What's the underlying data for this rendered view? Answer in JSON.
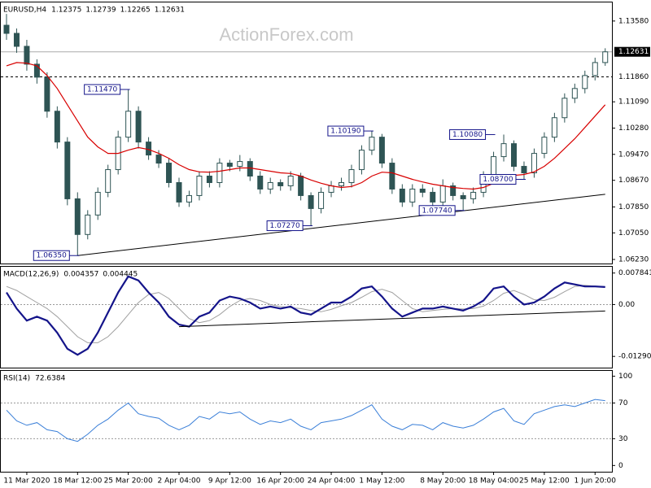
{
  "chart_data": [
    {
      "type": "candlestick",
      "header": {
        "symbol": "EURUSD,H4",
        "values": [
          1.12375,
          1.12739,
          1.12265,
          1.12631
        ]
      },
      "watermark": "ActionForex.com",
      "color": "#2e5454",
      "categories": [
        null,
        null,
        "11 Mar 2020",
        null,
        null,
        null,
        null,
        "18 Mar 12:00",
        null,
        null,
        null,
        null,
        "25 Mar 20:00",
        null,
        null,
        null,
        null,
        "2 Apr 04:00",
        null,
        null,
        null,
        null,
        "9 Apr 12:00",
        null,
        null,
        null,
        null,
        "16 Apr 20:00",
        null,
        null,
        null,
        null,
        "24 Apr 04:00",
        null,
        null,
        null,
        null,
        "1 May 12:00",
        null,
        null,
        null,
        null,
        null,
        "8 May 20:00",
        null,
        null,
        null,
        null,
        "18 May 04:00",
        null,
        null,
        null,
        null,
        "25 May 12:00",
        null,
        null,
        null,
        null,
        "1 Jun 20:00",
        null
      ],
      "open": [
        1.1345,
        1.132,
        1.128,
        1.1225,
        1.1185,
        1.108,
        1.0985,
        1.081,
        1.07,
        1.076,
        1.083,
        1.09,
        1.1,
        1.108,
        1.0985,
        1.0945,
        1.092,
        1.086,
        1.08,
        1.082,
        1.088,
        1.086,
        1.092,
        1.091,
        1.0925,
        1.088,
        1.084,
        1.086,
        1.085,
        1.088,
        1.082,
        1.078,
        1.083,
        1.085,
        1.086,
        1.09,
        1.096,
        1.1,
        1.092,
        1.084,
        1.08,
        1.084,
        1.083,
        1.08,
        1.085,
        1.082,
        1.081,
        1.083,
        1.088,
        1.094,
        1.098,
        1.091,
        1.089,
        1.095,
        1.1,
        1.106,
        1.112,
        1.115,
        1.119,
        1.123
      ],
      "high": [
        1.138,
        1.1335,
        1.13,
        1.124,
        1.12,
        1.1095,
        1.1,
        1.083,
        1.0775,
        1.0845,
        1.0915,
        1.102,
        1.1147,
        1.1095,
        1.1,
        1.096,
        1.0935,
        1.0875,
        1.0835,
        1.0895,
        1.0895,
        1.0935,
        1.093,
        1.0945,
        1.0935,
        1.0895,
        1.0875,
        1.087,
        1.0895,
        1.089,
        1.083,
        1.0845,
        1.0865,
        1.0875,
        1.0915,
        1.0975,
        1.1019,
        1.101,
        1.0935,
        1.0855,
        1.0855,
        1.0855,
        1.0845,
        1.087,
        1.086,
        1.083,
        1.0845,
        1.0895,
        1.0955,
        1.1008,
        1.099,
        1.0925,
        1.0965,
        1.1015,
        1.1075,
        1.1135,
        1.1165,
        1.1205,
        1.1245,
        1.1274
      ],
      "low": [
        1.13,
        1.126,
        1.1205,
        1.1165,
        1.106,
        1.0965,
        1.079,
        1.0635,
        1.0685,
        1.0745,
        1.0815,
        1.0885,
        1.0985,
        1.0965,
        1.093,
        1.0905,
        1.0845,
        1.0785,
        1.0785,
        1.0805,
        1.0845,
        1.0845,
        1.0895,
        1.0895,
        1.0865,
        1.0825,
        1.0825,
        1.0835,
        1.0835,
        1.0805,
        1.0727,
        1.0765,
        1.0815,
        1.0835,
        1.0845,
        1.0885,
        1.0945,
        1.0905,
        1.0825,
        1.0785,
        1.0785,
        1.0815,
        1.0785,
        1.0785,
        1.0805,
        1.0774,
        1.0795,
        1.0815,
        1.0865,
        1.0925,
        1.0895,
        1.087,
        1.0875,
        1.0935,
        1.0985,
        1.1045,
        1.1105,
        1.1135,
        1.1175,
        1.122
      ],
      "close": [
        1.132,
        1.128,
        1.1225,
        1.1185,
        1.108,
        1.0985,
        1.081,
        1.07,
        1.076,
        1.083,
        1.09,
        1.1,
        1.108,
        1.0985,
        1.0945,
        1.092,
        1.086,
        1.08,
        1.082,
        1.088,
        1.086,
        1.092,
        1.091,
        1.0925,
        1.088,
        1.084,
        1.086,
        1.085,
        1.088,
        1.082,
        1.078,
        1.083,
        1.085,
        1.086,
        1.09,
        1.096,
        1.1,
        1.092,
        1.084,
        1.08,
        1.084,
        1.083,
        1.08,
        1.085,
        1.082,
        1.081,
        1.083,
        1.088,
        1.094,
        1.098,
        1.091,
        1.089,
        1.095,
        1.1,
        1.106,
        1.112,
        1.115,
        1.119,
        1.123,
        1.1263
      ],
      "series": [
        {
          "color": "#d80000",
          "values": [
            1.122,
            1.123,
            1.1228,
            1.122,
            1.119,
            1.115,
            1.11,
            1.105,
            1.1,
            1.097,
            1.095,
            1.095,
            1.096,
            1.0968,
            1.0962,
            1.095,
            1.0935,
            1.0915,
            1.09,
            1.0893,
            1.0892,
            1.0895,
            1.09,
            1.0905,
            1.0905,
            1.09,
            1.0895,
            1.089,
            1.0888,
            1.088,
            1.0868,
            1.0858,
            1.085,
            1.0845,
            1.0848,
            1.086,
            1.088,
            1.0892,
            1.089,
            1.088,
            1.087,
            1.0862,
            1.0855,
            1.085,
            1.0845,
            1.0842,
            1.084,
            1.0845,
            1.0858,
            1.0872,
            1.0882,
            1.0885,
            1.0893,
            1.091,
            1.0935,
            1.0965,
            1.0995,
            1.103,
            1.1065,
            1.11
          ]
        }
      ],
      "annotations": [
        {
          "x": 12,
          "value": 1.1147,
          "label": "1.11470"
        },
        {
          "x": 7,
          "value": 1.0635,
          "label": "1.06350"
        },
        {
          "x": 36,
          "value": 1.1019,
          "label": "1.10190"
        },
        {
          "x": 30,
          "value": 1.0727,
          "label": "1.07270"
        },
        {
          "x": 45,
          "value": 1.0774,
          "label": "1.07740"
        },
        {
          "x": 48,
          "value": 1.1008,
          "label": "1.10080"
        },
        {
          "x": 51,
          "value": 1.087,
          "label": "1.08700"
        }
      ],
      "trendline": {
        "x": [
          7,
          59
        ],
        "values": [
          1.0635,
          1.0824
        ]
      },
      "current_price": {
        "value": 1.12631,
        "label": "1.12631"
      },
      "level": {
        "value": 1.1186,
        "label": "1.11860"
      },
      "ylim": [
        1.06105,
        1.14153
      ],
      "yticks": [
        {
          "value": 1.1358,
          "label": "1.13580"
        },
        {
          "value": 1.1109,
          "label": "1.11090"
        },
        {
          "value": 1.1028,
          "label": "1.10280"
        },
        {
          "value": 1.0947,
          "label": "1.09470"
        },
        {
          "value": 1.0867,
          "label": "1.08670"
        },
        {
          "value": 1.0785,
          "label": "1.07850"
        },
        {
          "value": 1.0705,
          "label": "1.07050"
        },
        {
          "value": 1.0623,
          "label": "1.06230"
        }
      ]
    },
    {
      "type": "line",
      "header": {
        "name": "MACD(12,26,9)",
        "values": [
          0.004357,
          0.004445
        ]
      },
      "series": [
        {
          "color": "#14148a",
          "values": [
            0.003,
            -0.001,
            -0.004,
            -0.003,
            -0.004,
            -0.007,
            -0.011,
            -0.0125,
            -0.011,
            -0.007,
            -0.002,
            0.003,
            0.007,
            0.006,
            0.003,
            0.0005,
            -0.003,
            -0.005,
            -0.0055,
            -0.003,
            -0.002,
            0.001,
            0.002,
            0.0015,
            0.0005,
            -0.001,
            -0.0005,
            -0.001,
            -0.0005,
            -0.002,
            -0.0025,
            -0.001,
            0.0005,
            0.0005,
            0.002,
            0.004,
            0.0045,
            0.002,
            -0.001,
            -0.003,
            -0.002,
            -0.001,
            -0.001,
            -0.0005,
            -0.001,
            -0.0015,
            -0.0005,
            0.001,
            0.004,
            0.0045,
            0.002,
            0.0,
            0.0005,
            0.002,
            0.004,
            0.0055,
            0.005,
            0.0045,
            0.0045,
            0.004357
          ]
        },
        {
          "color": "#a0a0a0",
          "values": [
            0.0045,
            0.0035,
            0.002,
            0.0005,
            -0.001,
            -0.003,
            -0.0055,
            -0.008,
            -0.0095,
            -0.0095,
            -0.008,
            -0.0055,
            -0.0025,
            0.0005,
            0.0025,
            0.003,
            0.0015,
            -0.001,
            -0.0035,
            -0.0045,
            -0.004,
            -0.0025,
            -0.0005,
            0.001,
            0.0015,
            0.001,
            0.0,
            -0.0005,
            -0.0008,
            -0.001,
            -0.0015,
            -0.0018,
            -0.0012,
            -0.0003,
            0.0005,
            0.0018,
            0.0032,
            0.0038,
            0.003,
            0.001,
            -0.001,
            -0.0018,
            -0.0015,
            -0.0012,
            -0.001,
            -0.0011,
            -0.001,
            -0.0004,
            0.001,
            0.0028,
            0.0035,
            0.0025,
            0.0012,
            0.001,
            0.0018,
            0.0032,
            0.0045,
            0.0048,
            0.0046,
            0.004445
          ]
        }
      ],
      "trendline": {
        "x": [
          17,
          59
        ],
        "values": [
          -0.0055,
          -0.0016
        ]
      },
      "ylim": [
        -0.0157,
        0.0094
      ],
      "yticks": [
        0.007841,
        {
          "value": 0,
          "label": "0.00"
        },
        -0.012906
      ]
    },
    {
      "type": "line",
      "header": {
        "name": "RSI(14)",
        "values": [
          72.6384
        ]
      },
      "series": [
        {
          "color": "#3a7fd8",
          "values": [
            62,
            50,
            45,
            48,
            40,
            38,
            30,
            27,
            35,
            45,
            52,
            62,
            70,
            58,
            55,
            53,
            45,
            40,
            45,
            55,
            52,
            60,
            58,
            60,
            52,
            46,
            50,
            48,
            52,
            44,
            40,
            48,
            50,
            52,
            56,
            62,
            68,
            52,
            44,
            40,
            46,
            45,
            40,
            48,
            44,
            42,
            45,
            52,
            60,
            64,
            50,
            46,
            58,
            62,
            66,
            68,
            66,
            70,
            74,
            72.6384
          ]
        }
      ],
      "ylim": [
        -7,
        106
      ],
      "yticks": [
        100,
        70,
        30,
        0
      ],
      "dashed_ticks": [
        70,
        30
      ]
    }
  ]
}
